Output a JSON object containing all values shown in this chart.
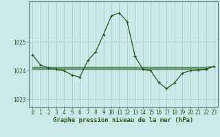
{
  "title": "Graphe pression niveau de la mer (hPa)",
  "background_color": "#cce8e8",
  "grid_color": "#b0d4d4",
  "line_color": "#1a5c1a",
  "x_values": [
    0,
    1,
    2,
    3,
    4,
    5,
    6,
    7,
    8,
    9,
    10,
    11,
    12,
    13,
    14,
    15,
    16,
    17,
    18,
    19,
    20,
    21,
    22,
    23
  ],
  "y_main": [
    1024.55,
    1024.2,
    1024.1,
    1024.05,
    1024.0,
    1023.85,
    1023.78,
    1024.35,
    1024.65,
    1025.25,
    1025.9,
    1026.0,
    1025.7,
    1024.5,
    1024.05,
    1024.0,
    1023.6,
    1023.38,
    1023.58,
    1023.92,
    1024.0,
    1024.02,
    1024.05,
    1024.15
  ],
  "y_flat1": [
    1024.05,
    1024.05,
    1024.05,
    1024.05,
    1024.05,
    1024.05,
    1024.05,
    1024.05,
    1024.05,
    1024.05,
    1024.05,
    1024.05,
    1024.05,
    1024.05,
    1024.05,
    1024.05,
    1024.05,
    1024.05,
    1024.05,
    1024.05,
    1024.05,
    1024.05,
    1024.05,
    1024.15
  ],
  "y_flat2": [
    1024.08,
    1024.08,
    1024.08,
    1024.08,
    1024.08,
    1024.08,
    1024.08,
    1024.08,
    1024.08,
    1024.08,
    1024.08,
    1024.08,
    1024.08,
    1024.08,
    1024.08,
    1024.08,
    1024.08,
    1024.08,
    1024.08,
    1024.08,
    1024.08,
    1024.08,
    1024.08,
    1024.15
  ],
  "y_flat3": [
    1024.12,
    1024.12,
    1024.12,
    1024.12,
    1024.12,
    1024.12,
    1024.12,
    1024.12,
    1024.12,
    1024.12,
    1024.12,
    1024.12,
    1024.12,
    1024.12,
    1024.12,
    1024.12,
    1024.12,
    1024.12,
    1024.12,
    1024.12,
    1024.12,
    1024.12,
    1024.12,
    1024.15
  ],
  "ylim": [
    1022.75,
    1026.4
  ],
  "yticks": [
    1023,
    1024,
    1025
  ],
  "xticks": [
    0,
    1,
    2,
    3,
    4,
    5,
    6,
    7,
    8,
    9,
    10,
    11,
    12,
    13,
    14,
    15,
    16,
    17,
    18,
    19,
    20,
    21,
    22,
    23
  ],
  "tick_fontsize": 5.5,
  "title_fontsize": 6.5
}
